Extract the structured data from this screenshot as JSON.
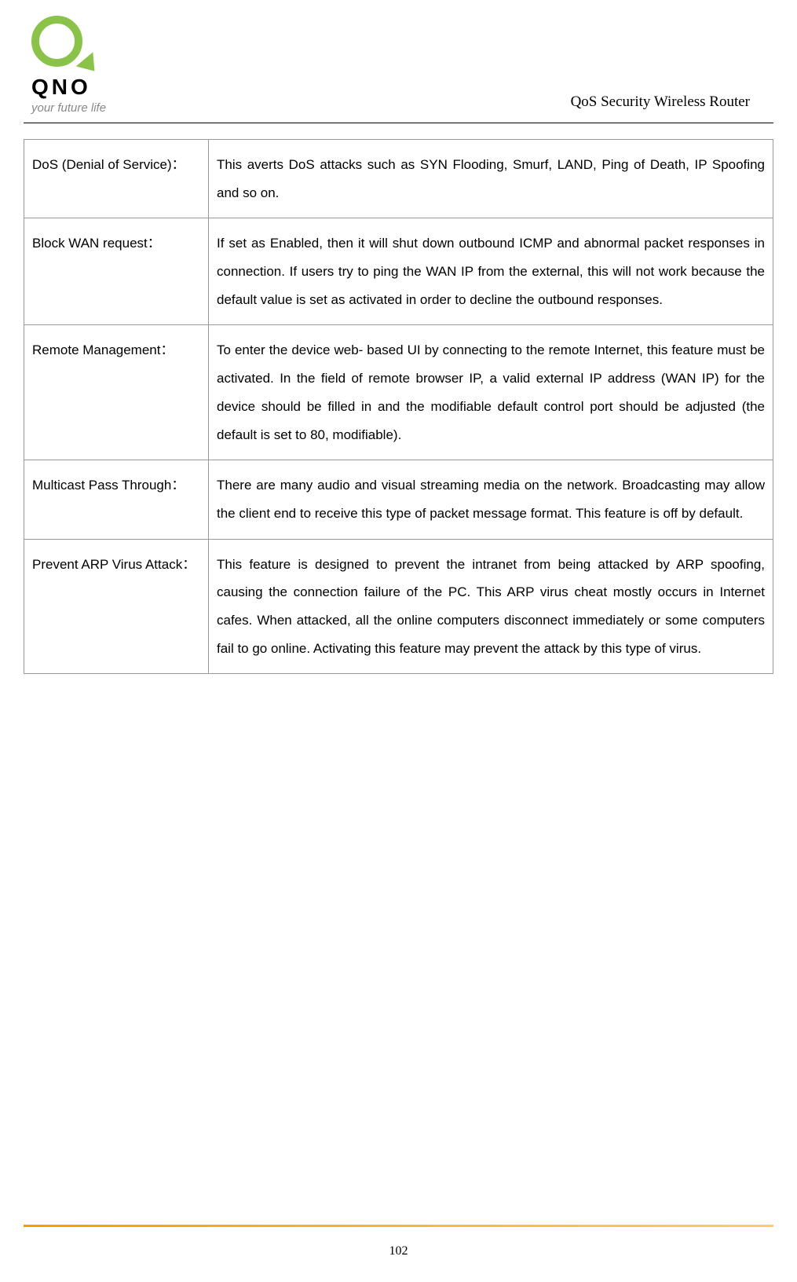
{
  "header": {
    "logo_text": "QNO",
    "tagline": "your future life",
    "title": "QoS Security Wireless Router"
  },
  "table": {
    "rows": [
      {
        "label": "DoS (Denial of Service)：",
        "description": "This averts DoS attacks such as SYN Flooding, Smurf, LAND, Ping of Death, IP Spoofing and so on."
      },
      {
        "label": "Block WAN request：",
        "description": "If set as Enabled, then it will shut down outbound ICMP and abnormal packet responses in connection. If users try to ping the WAN IP from the external, this will not work because the default value is set as activated in order to decline the outbound responses."
      },
      {
        "label": "Remote Management：",
        "description": "To enter the device web- based UI by connecting to the remote Internet, this feature must be activated. In the field of remote browser IP, a valid external IP address (WAN IP) for the device should be filled in and the modifiable default control port should be adjusted (the default is set to 80, modifiable)."
      },
      {
        "label": "Multicast Pass Through：",
        "description": "There are many audio and visual streaming media on the network. Broadcasting may allow the client end to receive this type of packet message format. This feature is off by default."
      },
      {
        "label": "Prevent ARP Virus Attack：",
        "description": "This feature is designed to prevent the intranet from being attacked by ARP spoofing, causing the connection failure of the PC. This ARP virus cheat mostly occurs in Internet cafes. When attacked, all the online computers disconnect immediately or some computers fail to go online. Activating this feature may prevent the attack by this type of virus."
      }
    ]
  },
  "footer": {
    "page_number": "102"
  },
  "colors": {
    "logo_green": "#8bc34a",
    "border_gray": "#999999",
    "text_black": "#000000",
    "tagline_gray": "#888888",
    "footer_orange": "#ff9900"
  }
}
